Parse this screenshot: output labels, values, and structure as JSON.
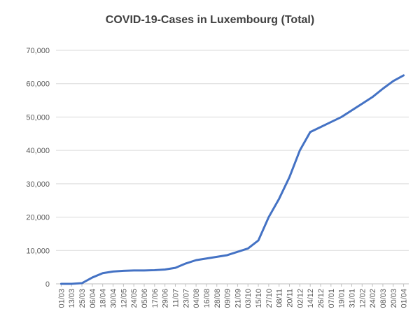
{
  "chart_data": {
    "type": "line",
    "title": "COVID-19-Cases in Luxembourg (Total)",
    "xlabel": "",
    "ylabel": "",
    "ylim": [
      0,
      70000
    ],
    "yticks": [
      0,
      10000,
      20000,
      30000,
      40000,
      50000,
      60000,
      70000
    ],
    "ytick_labels": [
      "0",
      "10,000",
      "20,000",
      "30,000",
      "40,000",
      "50,000",
      "60,000",
      "70,000"
    ],
    "x_tick_labels": [
      "01/03",
      "13/03",
      "25/03",
      "06/04",
      "18/04",
      "30/04",
      "12/05",
      "24/05",
      "05/06",
      "17/06",
      "29/06",
      "11/07",
      "23/07",
      "04/08",
      "16/08",
      "28/08",
      "09/09",
      "21/09",
      "03/10",
      "15/10",
      "27/10",
      "08/11",
      "20/11",
      "02/12",
      "14/12",
      "26/12",
      "07/01",
      "19/01",
      "31/01",
      "12/02",
      "24/02",
      "08/03",
      "20/03",
      "01/04"
    ],
    "grid": true,
    "legend": "none",
    "colors": {
      "line": "#4472c4",
      "grid": "#d9d9d9",
      "axis": "#bfbfbf",
      "text": "#595959",
      "title": "#404040"
    },
    "series": [
      {
        "values": [
          0,
          0,
          200,
          1900,
          3200,
          3700,
          3900,
          4000,
          4000,
          4100,
          4300,
          4800,
          6100,
          7100,
          7600,
          8100,
          8600,
          9600,
          10600,
          13000,
          20000,
          25500,
          32000,
          40000,
          45500,
          47000,
          48500,
          50000,
          52000,
          54000,
          56000,
          58500,
          60800,
          62500
        ]
      }
    ]
  }
}
